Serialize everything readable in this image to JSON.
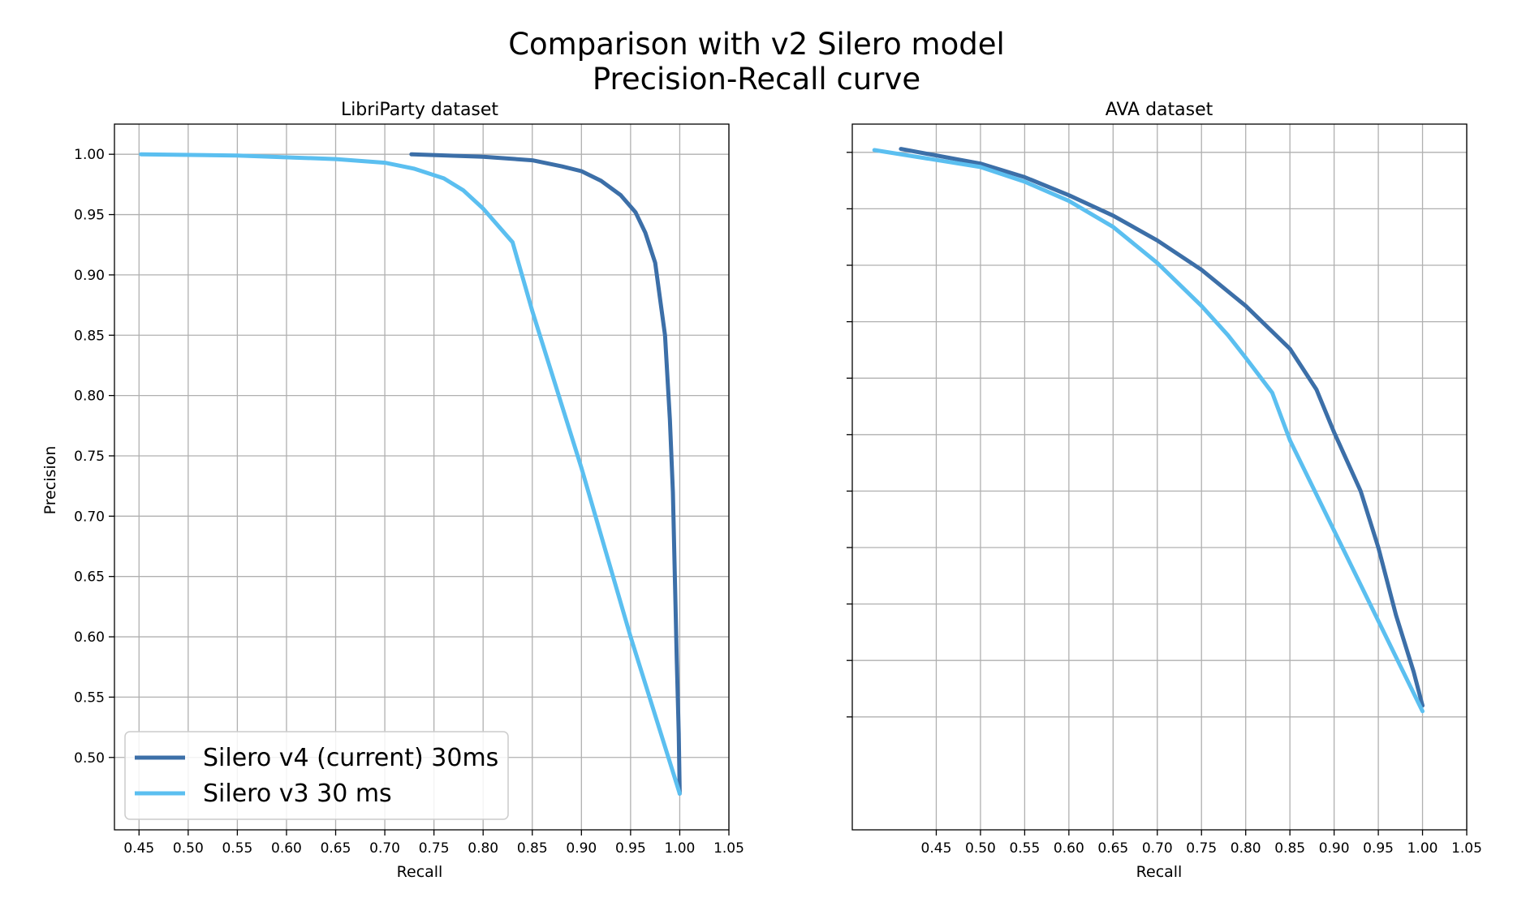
{
  "figure": {
    "title_line1": "Comparison with v2 Silero model",
    "title_line2": "Precision-Recall curve"
  },
  "chart_data": [
    {
      "type": "line",
      "title": "LibriParty dataset",
      "xlabel": "Recall",
      "ylabel": "Precision",
      "xlim": [
        0.425,
        1.05
      ],
      "ylim": [
        0.44,
        1.025
      ],
      "xticks": [
        0.45,
        0.5,
        0.55,
        0.6,
        0.65,
        0.7,
        0.75,
        0.8,
        0.85,
        0.9,
        0.95,
        1.0,
        1.05
      ],
      "xtick_labels": [
        "0.45",
        "0.50",
        "0.55",
        "0.60",
        "0.65",
        "0.70",
        "0.75",
        "0.80",
        "0.85",
        "0.90",
        "0.95",
        "1.00",
        "1.05"
      ],
      "yticks": [
        0.5,
        0.55,
        0.6,
        0.65,
        0.7,
        0.75,
        0.8,
        0.85,
        0.9,
        0.95,
        1.0
      ],
      "ytick_labels": [
        "0.50",
        "0.55",
        "0.60",
        "0.65",
        "0.70",
        "0.75",
        "0.80",
        "0.85",
        "0.90",
        "0.95",
        "1.00"
      ],
      "grid": true,
      "legend_position": "lower-left",
      "series": [
        {
          "name": "Silero v4 (current) 30ms",
          "color": "#3c6fa8",
          "x": [
            0.727,
            0.8,
            0.85,
            0.88,
            0.9,
            0.92,
            0.94,
            0.955,
            0.965,
            0.975,
            0.98,
            0.985,
            0.99,
            0.993,
            0.995,
            0.997,
            0.999,
            1.0
          ],
          "y": [
            1.0,
            0.998,
            0.995,
            0.99,
            0.986,
            0.978,
            0.966,
            0.952,
            0.935,
            0.91,
            0.88,
            0.85,
            0.78,
            0.72,
            0.65,
            0.58,
            0.52,
            0.47
          ]
        },
        {
          "name": "Silero v3 30 ms",
          "color": "#5bbff0",
          "x": [
            0.452,
            0.55,
            0.65,
            0.7,
            0.73,
            0.76,
            0.78,
            0.8,
            0.83,
            0.85,
            0.9,
            0.95,
            1.0
          ],
          "y": [
            1.0,
            0.999,
            0.996,
            0.993,
            0.988,
            0.98,
            0.97,
            0.955,
            0.927,
            0.87,
            0.74,
            0.6,
            0.47
          ]
        }
      ]
    },
    {
      "type": "line",
      "title": "AVA dataset",
      "xlabel": "Recall",
      "ylabel": "",
      "xlim": [
        0.355,
        1.05
      ],
      "ylim": [
        0.4,
        1.025
      ],
      "xticks": [
        0.45,
        0.5,
        0.55,
        0.6,
        0.65,
        0.7,
        0.75,
        0.8,
        0.85,
        0.9,
        0.95,
        1.0,
        1.05
      ],
      "xtick_labels": [
        "0.45",
        "0.50",
        "0.55",
        "0.60",
        "0.65",
        "0.70",
        "0.75",
        "0.80",
        "0.85",
        "0.90",
        "0.95",
        "1.00",
        "1.05"
      ],
      "yticks": [
        0.5,
        0.55,
        0.6,
        0.65,
        0.7,
        0.75,
        0.8,
        0.85,
        0.9,
        0.95,
        1.0
      ],
      "ytick_labels": [],
      "grid": true,
      "series": [
        {
          "name": "Silero v4 (current) 30ms",
          "color": "#3c6fa8",
          "x": [
            0.41,
            0.5,
            0.55,
            0.6,
            0.65,
            0.7,
            0.75,
            0.8,
            0.85,
            0.88,
            0.9,
            0.93,
            0.95,
            0.97,
            0.99,
            1.0
          ],
          "y": [
            1.003,
            0.99,
            0.978,
            0.962,
            0.944,
            0.922,
            0.896,
            0.864,
            0.826,
            0.79,
            0.752,
            0.7,
            0.65,
            0.59,
            0.54,
            0.51
          ]
        },
        {
          "name": "Silero v3 30 ms",
          "color": "#5bbff0",
          "x": [
            0.38,
            0.5,
            0.55,
            0.6,
            0.65,
            0.7,
            0.75,
            0.78,
            0.8,
            0.83,
            0.85,
            0.9,
            0.95,
            1.0
          ],
          "y": [
            1.002,
            0.987,
            0.974,
            0.957,
            0.934,
            0.902,
            0.864,
            0.838,
            0.818,
            0.787,
            0.745,
            0.665,
            0.585,
            0.505
          ]
        }
      ]
    }
  ]
}
